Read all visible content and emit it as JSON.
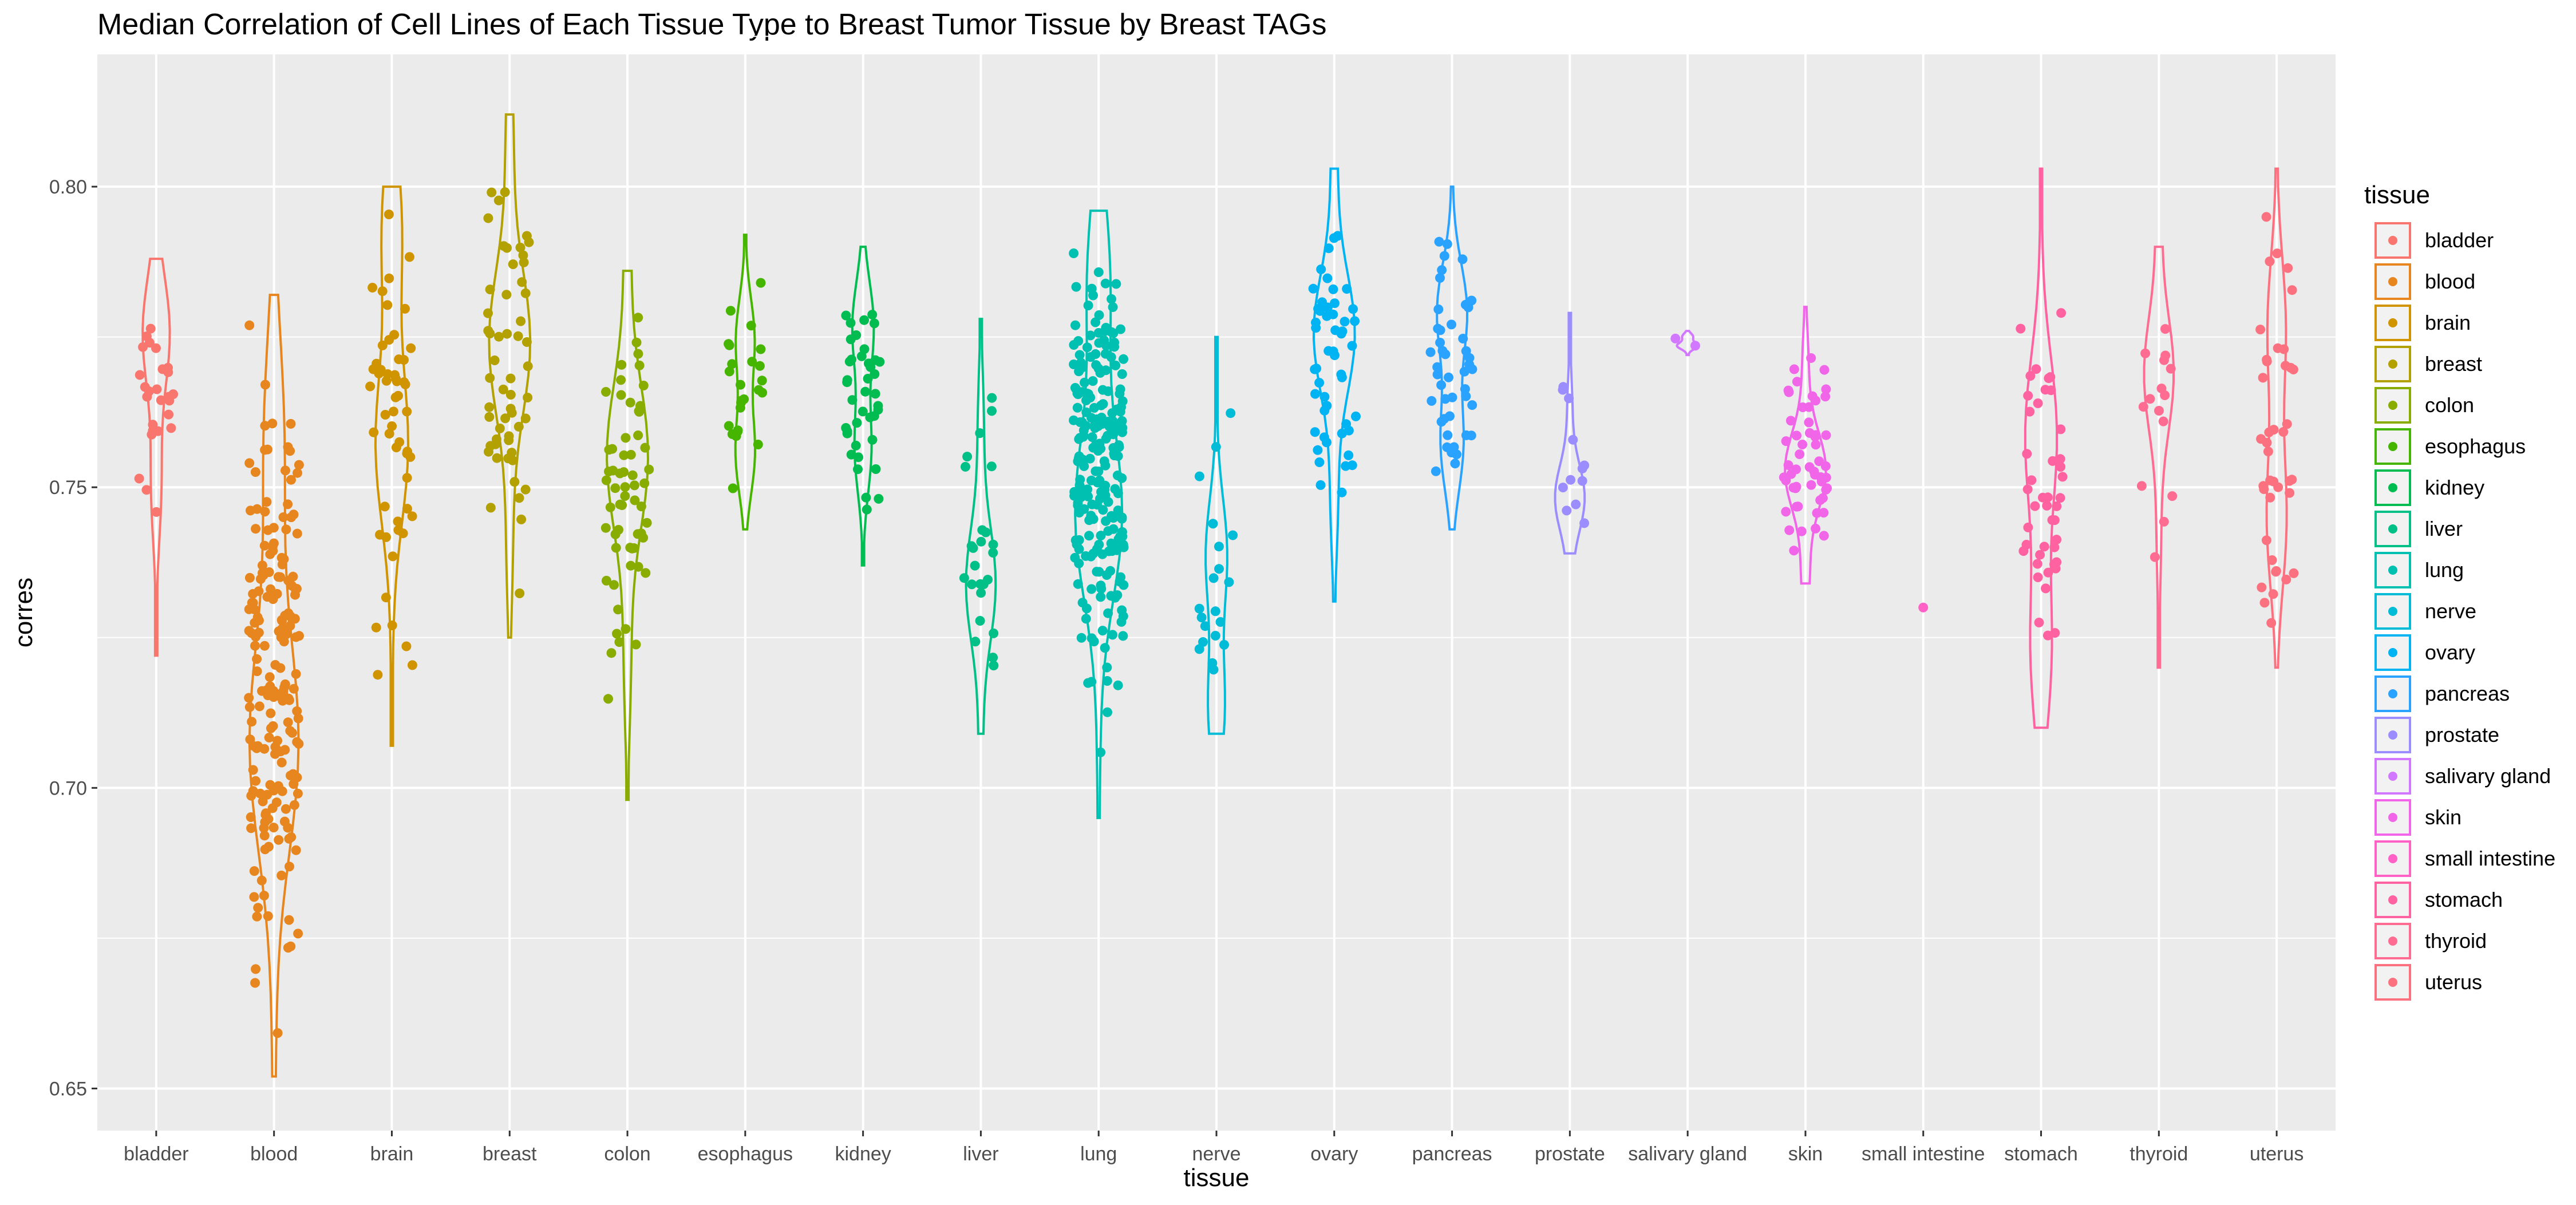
{
  "chart_data": {
    "type": "violin",
    "title": "Median Correlation of Cell Lines of Each Tissue Type to Breast Tumor Tissue by Breast TAGs",
    "xlabel": "tissue",
    "ylabel": "corres",
    "ylim": [
      0.643,
      0.822
    ],
    "y_ticks": [
      0.65,
      0.7,
      0.75,
      0.8
    ],
    "y_tick_labels": [
      "0.65",
      "0.70",
      "0.75",
      "0.80"
    ],
    "grid": true,
    "legend": {
      "title": "tissue",
      "position": "right"
    },
    "categories": [
      "bladder",
      "blood",
      "brain",
      "breast",
      "colon",
      "esophagus",
      "kidney",
      "liver",
      "lung",
      "nerve",
      "ovary",
      "pancreas",
      "prostate",
      "salivary gland",
      "skin",
      "small intestine",
      "stomach",
      "thyroid",
      "uterus"
    ],
    "series": [
      {
        "name": "bladder",
        "color": "#F8766D",
        "min": 0.722,
        "max": 0.788,
        "median": 0.77,
        "n": 26
      },
      {
        "name": "blood",
        "color": "#E7851E",
        "min": 0.652,
        "max": 0.782,
        "median": 0.72,
        "n": 190
      },
      {
        "name": "brain",
        "color": "#D09400",
        "min": 0.707,
        "max": 0.8,
        "median": 0.77,
        "n": 55
      },
      {
        "name": "breast",
        "color": "#B2A100",
        "min": 0.725,
        "max": 0.812,
        "median": 0.775,
        "n": 55
      },
      {
        "name": "colon",
        "color": "#89AC00",
        "min": 0.698,
        "max": 0.786,
        "median": 0.755,
        "n": 60
      },
      {
        "name": "esophagus",
        "color": "#45B500",
        "min": 0.743,
        "max": 0.792,
        "median": 0.765,
        "n": 25
      },
      {
        "name": "kidney",
        "color": "#00BC51",
        "min": 0.737,
        "max": 0.79,
        "median": 0.768,
        "n": 40
      },
      {
        "name": "liver",
        "color": "#00C087",
        "min": 0.709,
        "max": 0.778,
        "median": 0.735,
        "n": 25
      },
      {
        "name": "lung",
        "color": "#00C0B2",
        "min": 0.695,
        "max": 0.796,
        "median": 0.757,
        "n": 230
      },
      {
        "name": "nerve",
        "color": "#00BCD6",
        "min": 0.709,
        "max": 0.775,
        "median": 0.728,
        "n": 20
      },
      {
        "name": "ovary",
        "color": "#00B3F2",
        "min": 0.731,
        "max": 0.803,
        "median": 0.775,
        "n": 50
      },
      {
        "name": "pancreas",
        "color": "#29A3FF",
        "min": 0.743,
        "max": 0.8,
        "median": 0.77,
        "n": 45
      },
      {
        "name": "prostate",
        "color": "#9C8DFF",
        "min": 0.739,
        "max": 0.779,
        "median": 0.748,
        "n": 12
      },
      {
        "name": "salivary gland",
        "color": "#D277FF",
        "min": 0.772,
        "max": 0.776,
        "median": 0.774,
        "n": 2
      },
      {
        "name": "skin",
        "color": "#F166E8",
        "min": 0.734,
        "max": 0.78,
        "median": 0.752,
        "n": 55
      },
      {
        "name": "small intestine",
        "color": "#FF61C7",
        "min": 0.73,
        "max": 0.73,
        "median": 0.73,
        "n": 1
      },
      {
        "name": "stomach",
        "color": "#FF62A0",
        "min": 0.71,
        "max": 0.803,
        "median": 0.745,
        "n": 45
      },
      {
        "name": "thyroid",
        "color": "#FF6C91",
        "min": 0.72,
        "max": 0.79,
        "median": 0.77,
        "n": 15
      },
      {
        "name": "uterus",
        "color": "#FC717F",
        "min": 0.72,
        "max": 0.803,
        "median": 0.76,
        "n": 40
      }
    ]
  }
}
